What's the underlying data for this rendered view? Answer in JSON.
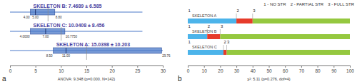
{
  "chart_data": [
    {
      "type": "box",
      "orientation": "horizontal",
      "title": "a",
      "annotations": [
        "ANOVA: 9.348 (p=0.000, N=142)"
      ],
      "color": "#4a78c8",
      "xlim": [
        0,
        30
      ],
      "xticks": [
        0,
        5,
        10,
        15,
        20,
        25,
        30
      ],
      "boxes": [
        {
          "label": "SKELETON B: 7.4689 ± 6.585",
          "mean": 7.4689,
          "whiskers": [
            0,
            26
          ],
          "values": [
            4,
            5,
            8.8
          ],
          "value_labels": [
            "4.00",
            "5.00",
            "8.80"
          ]
        },
        {
          "label": "SKELETON C: 10.0408 ± 8.456",
          "mean": 10.0408,
          "whiskers": [
            0,
            26
          ],
          "values": [
            4,
            7,
            10.775
          ],
          "value_labels": [
            "4.0000",
            "7.00",
            "10.7750"
          ]
        },
        {
          "label": "SKELETON A: 15.0398 ± 10.203",
          "mean": 15.0398,
          "whiskers": [
            0,
            30
          ],
          "values": [
            8.5,
            11,
            29.76
          ],
          "value_labels": [
            "8.50",
            "11.00",
            "29.76"
          ]
        }
      ]
    },
    {
      "type": "bar",
      "orientation": "horizontal",
      "stacked": true,
      "title": "b",
      "annotations": [
        "χ²: 5.11 (p=0.276, dof=4)"
      ],
      "legend": "top-right",
      "categories": [
        "SKELETON A",
        "SKELETON B",
        "SKELETON C"
      ],
      "segment_labels": [
        "1",
        "2",
        "3"
      ],
      "series": [
        {
          "name": "1 - NO STR",
          "color": "#4cb4ea",
          "values": [
            30,
            12,
            22
          ]
        },
        {
          "name": "2 - PARTIAL STR",
          "color": "#e63b2a",
          "values": [
            10,
            8,
            2
          ]
        },
        {
          "name": "3 - FULL STR",
          "color": "#95c83f",
          "values": [
            60,
            80,
            76
          ]
        }
      ],
      "xlim": [
        0,
        100
      ],
      "xticks": [
        0,
        10,
        20,
        30,
        40,
        50,
        60,
        70,
        80,
        90,
        100
      ]
    }
  ]
}
